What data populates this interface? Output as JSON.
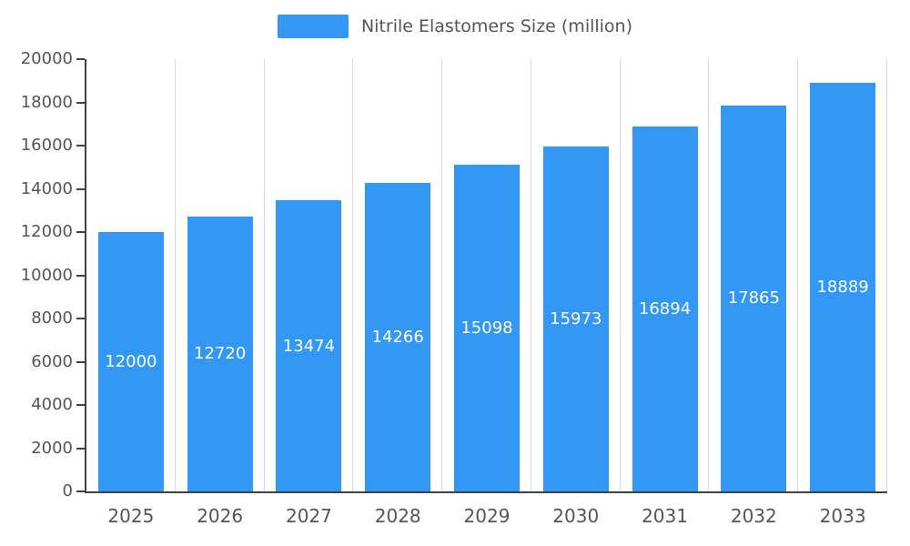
{
  "chart_data": {
    "type": "bar",
    "title": "Nitrile Elastomers Size (million)",
    "legend": "Nitrile Elastomers Size (million)",
    "categories": [
      "2025",
      "2026",
      "2027",
      "2028",
      "2029",
      "2030",
      "2031",
      "2032",
      "2033"
    ],
    "values": [
      12000,
      12720,
      13474,
      14266,
      15098,
      15973,
      16894,
      17865,
      18889
    ],
    "xlabel": "",
    "ylabel": "",
    "ylim": [
      0,
      20000
    ],
    "ytick_step": 2000,
    "yticks": [
      0,
      2000,
      4000,
      6000,
      8000,
      10000,
      12000,
      14000,
      16000,
      18000,
      20000
    ],
    "grid": "vertical-only",
    "legend_position": "top-center",
    "bar_color": "#3398f3",
    "value_label_color": "#ffffff",
    "axis_text_color": "#555555",
    "axis_line_color": "#424242",
    "gridline_color": "#d9d9d9",
    "value_labels_shown_inside_bars": true
  }
}
